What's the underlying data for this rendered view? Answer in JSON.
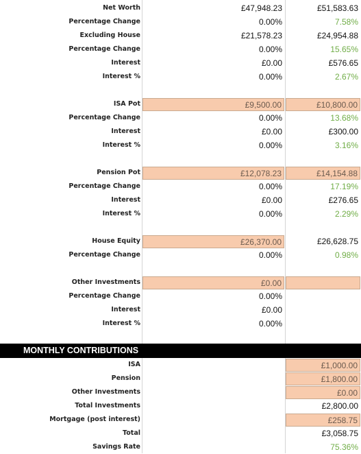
{
  "sections": [
    {
      "rows": [
        {
          "label": "Net Worth",
          "cells": [
            "£47,948.23",
            "£51,583.63"
          ]
        },
        {
          "label": "Percentage Change",
          "cells": [
            "0.00%",
            "7.58%"
          ],
          "colors": [
            null,
            "#70ad47"
          ]
        },
        {
          "label": "Excluding House",
          "cells": [
            "£21,578.23",
            "£24,954.88"
          ]
        },
        {
          "label": "Percentage Change",
          "cells": [
            "0.00%",
            "15.65%"
          ],
          "colors": [
            null,
            "#70ad47"
          ]
        },
        {
          "label": "Interest",
          "cells": [
            "£0.00",
            "£576.65"
          ]
        },
        {
          "label": "Interest %",
          "cells": [
            "0.00%",
            "2.67%"
          ],
          "colors": [
            null,
            "#70ad47"
          ]
        }
      ]
    },
    {
      "rows": [
        {
          "label": "ISA Pot",
          "cells": [
            "£9,500.00",
            "£10,800.00"
          ],
          "fills": [
            "#f8cbad",
            "#f8cbad"
          ]
        },
        {
          "label": "Percentage Change",
          "cells": [
            "0.00%",
            "13.68%"
          ],
          "colors": [
            null,
            "#70ad47"
          ]
        },
        {
          "label": "Interest",
          "cells": [
            "£0.00",
            "£300.00"
          ]
        },
        {
          "label": "Interest %",
          "cells": [
            "0.00%",
            "3.16%"
          ],
          "colors": [
            null,
            "#70ad47"
          ]
        }
      ]
    },
    {
      "rows": [
        {
          "label": "Pension Pot",
          "cells": [
            "£12,078.23",
            "£14,154.88"
          ],
          "fills": [
            "#f8cbad",
            "#f8cbad"
          ]
        },
        {
          "label": "Percentage Change",
          "cells": [
            "0.00%",
            "17.19%"
          ],
          "colors": [
            null,
            "#70ad47"
          ]
        },
        {
          "label": "Interest",
          "cells": [
            "£0.00",
            "£276.65"
          ]
        },
        {
          "label": "Interest %",
          "cells": [
            "0.00%",
            "2.29%"
          ],
          "colors": [
            null,
            "#70ad47"
          ]
        }
      ]
    },
    {
      "rows": [
        {
          "label": "House Equity",
          "cells": [
            "£26,370.00",
            "£26,628.75"
          ],
          "fills": [
            "#f8cbad",
            null
          ]
        },
        {
          "label": "Percentage Change",
          "cells": [
            "0.00%",
            "0.98%"
          ],
          "colors": [
            null,
            "#70ad47"
          ]
        }
      ]
    },
    {
      "rows": [
        {
          "label": "Other Investments",
          "cells": [
            "£0.00",
            null
          ],
          "fills": [
            "#f8cbad",
            "#f8cbad"
          ]
        },
        {
          "label": "Percentage Change",
          "cells": [
            "0.00%",
            null
          ]
        },
        {
          "label": "Interest",
          "cells": [
            "£0.00",
            null
          ]
        },
        {
          "label": "Interest %",
          "cells": [
            "0.00%",
            null
          ]
        }
      ]
    },
    {
      "title": "MONTHLY CONTRIBUTIONS",
      "rows": [
        {
          "label": "ISA",
          "cells": [
            null,
            "£1,000.00"
          ],
          "fills": [
            null,
            "#f8cbad"
          ]
        },
        {
          "label": "Pension",
          "cells": [
            null,
            "£1,800.00"
          ],
          "fills": [
            null,
            "#f8cbad"
          ]
        },
        {
          "label": "Other Investments",
          "cells": [
            null,
            "£0.00"
          ],
          "fills": [
            null,
            "#f8cbad"
          ]
        },
        {
          "label": "Total Investments",
          "cells": [
            null,
            "£2,800.00"
          ]
        },
        {
          "label": "Mortgage (post interest)",
          "cells": [
            null,
            "£258.75"
          ],
          "fills": [
            null,
            "#f8cbad"
          ]
        },
        {
          "label": "Total",
          "cells": [
            null,
            "£3,058.75"
          ]
        },
        {
          "label": "Savings Rate",
          "cells": [
            null,
            "75.36%"
          ],
          "colors": [
            null,
            "#70ad47"
          ]
        }
      ]
    }
  ]
}
